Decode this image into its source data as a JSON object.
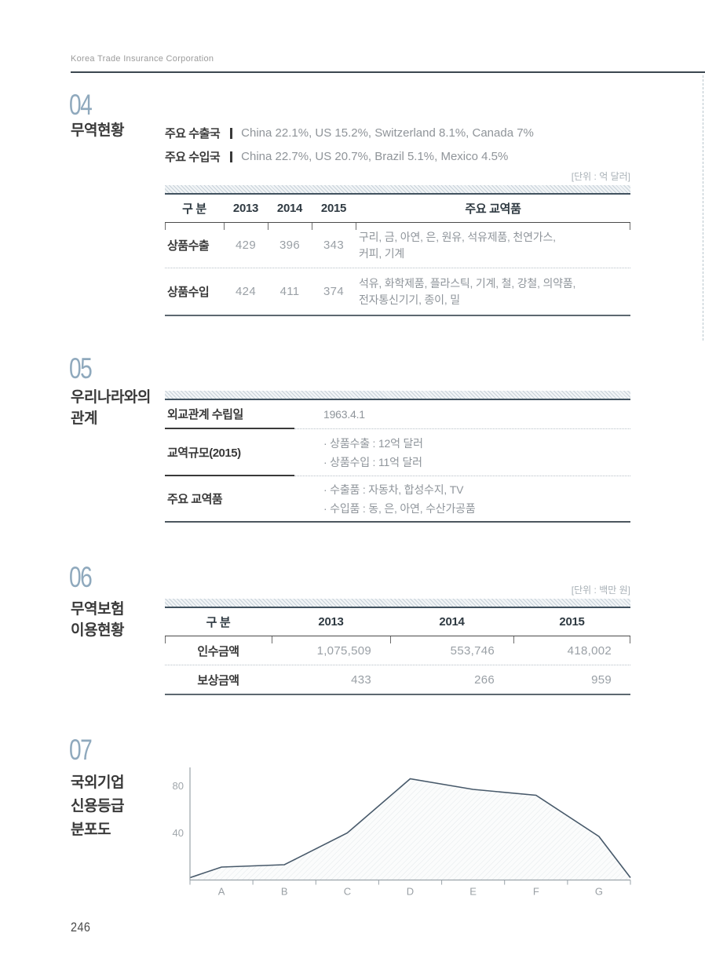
{
  "page": {
    "header": "Korea Trade Insurance Corporation",
    "page_number": "246"
  },
  "colors": {
    "accent_navy": "#41525f",
    "section_number_blue": "#8fa9bd",
    "body_gray": "#8f959b",
    "chart_line": "#47596a"
  },
  "section04": {
    "number": "04",
    "title": "무역현황",
    "info_lines": [
      {
        "label": "주요 수출국",
        "value": "China 22.1%, US 15.2%, Switzerland 8.1%, Canada 7%"
      },
      {
        "label": "주요 수입국",
        "value": "China 22.7%, US 20.7%, Brazil 5.1%, Mexico 4.5%"
      }
    ],
    "unit": "[단위 : 억 달러]",
    "table": {
      "headers": [
        "구 분",
        "2013",
        "2014",
        "2015",
        "주요 교역품"
      ],
      "rows": [
        {
          "label": "상품수출",
          "y2013": "429",
          "y2014": "396",
          "y2015": "343",
          "products": [
            "구리, 금, 아연, 은, 원유, 석유제품, 천연가스,",
            "커피, 기계"
          ]
        },
        {
          "label": "상품수입",
          "y2013": "424",
          "y2014": "411",
          "y2015": "374",
          "products": [
            "석유, 화학제품, 플라스틱, 기계, 철, 강철, 의약품,",
            "전자통신기기, 종이, 밀"
          ]
        }
      ]
    }
  },
  "section05": {
    "number": "05",
    "title_line1": "우리나라와의",
    "title_line2": "관계",
    "rows": [
      {
        "label": "외교관계 수립일",
        "values": [
          "1963.4.1"
        ]
      },
      {
        "label": "교역규모(2015)",
        "values": [
          "· 상품수출 : 12억 달러",
          "· 상품수입 : 11억 달러"
        ]
      },
      {
        "label": "주요 교역품",
        "values": [
          "· 수출품 : 자동차, 합성수지, TV",
          "· 수입품 : 동, 은, 아연, 수산가공품"
        ]
      }
    ]
  },
  "section06": {
    "number": "06",
    "title_line1": "무역보험",
    "title_line2": "이용현황",
    "unit": "[단위 : 백만 원]",
    "table": {
      "headers": [
        "구 분",
        "2013",
        "2014",
        "2015"
      ],
      "rows": [
        {
          "label": "인수금액",
          "values": [
            "1,075,509",
            "553,746",
            "418,002"
          ]
        },
        {
          "label": "보상금액",
          "values": [
            "433",
            "266",
            "959"
          ]
        }
      ]
    }
  },
  "section07": {
    "number": "07",
    "title_lines": [
      "국외기업",
      "신용등급",
      "분포도"
    ],
    "chart_data": {
      "type": "area",
      "title": "국외기업 신용등급 분포도",
      "categories": [
        "A",
        "B",
        "C",
        "D",
        "E",
        "F",
        "G"
      ],
      "values": [
        11,
        13,
        40,
        86,
        77,
        72,
        37
      ],
      "edge_start": 2,
      "edge_end": 2,
      "yticks": [
        40,
        80
      ],
      "ylim": [
        0,
        95
      ],
      "xlabel": "",
      "ylabel": "",
      "grid": false,
      "legend": "none",
      "line_color": "#47596a",
      "axis_color": "#9aa3a9"
    }
  }
}
